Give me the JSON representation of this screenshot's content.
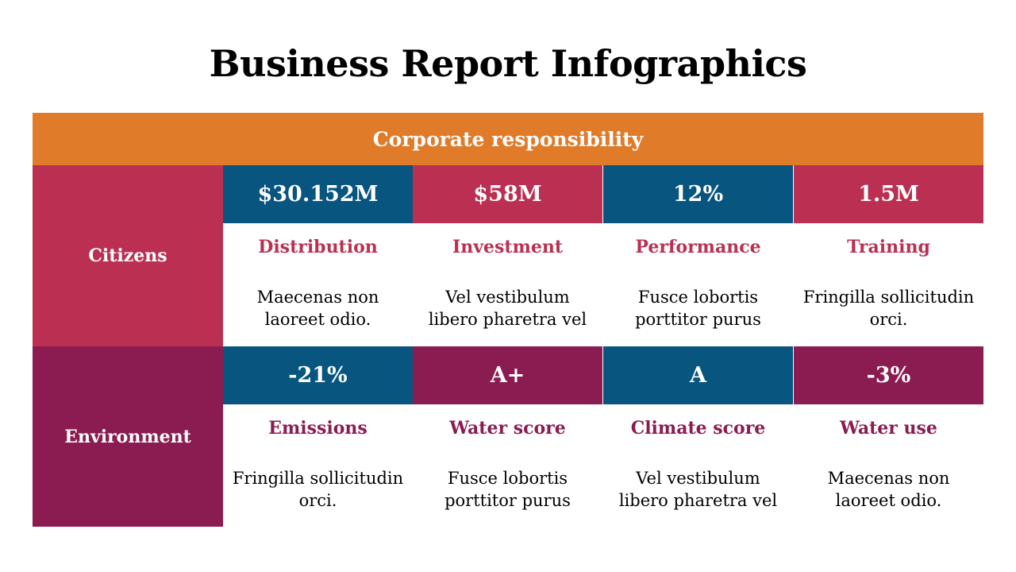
{
  "title": "Business Report Infographics",
  "banner": "Corporate responsibility",
  "colors": {
    "orange": "#E07B2A",
    "crimson": "#BB3052",
    "plum": "#8A1C52",
    "navy": "#085580"
  },
  "rows": [
    {
      "label": "Citizens",
      "cells": [
        {
          "metric": "$30.152M",
          "category": "Distribution",
          "desc_line1": "Maecenas non",
          "desc_line2": "laoreet odio."
        },
        {
          "metric": "$58M",
          "category": "Investment",
          "desc_line1": "Vel vestibulum",
          "desc_line2": "libero pharetra vel"
        },
        {
          "metric": "12%",
          "category": "Performance",
          "desc_line1": "Fusce lobortis",
          "desc_line2": "porttitor purus"
        },
        {
          "metric": "1.5M",
          "category": "Training",
          "desc_line1": "Fringilla sollicitudin",
          "desc_line2": "orci."
        }
      ]
    },
    {
      "label": "Environment",
      "cells": [
        {
          "metric": "-21%",
          "category": "Emissions",
          "desc_line1": "Fringilla sollicitudin",
          "desc_line2": "orci."
        },
        {
          "metric": "A+",
          "category": "Water score",
          "desc_line1": "Fusce lobortis",
          "desc_line2": "porttitor purus"
        },
        {
          "metric": "A",
          "category": "Climate score",
          "desc_line1": "Vel vestibulum",
          "desc_line2": "libero pharetra vel"
        },
        {
          "metric": "-3%",
          "category": "Water use",
          "desc_line1": "Maecenas non",
          "desc_line2": "laoreet odio."
        }
      ]
    }
  ]
}
